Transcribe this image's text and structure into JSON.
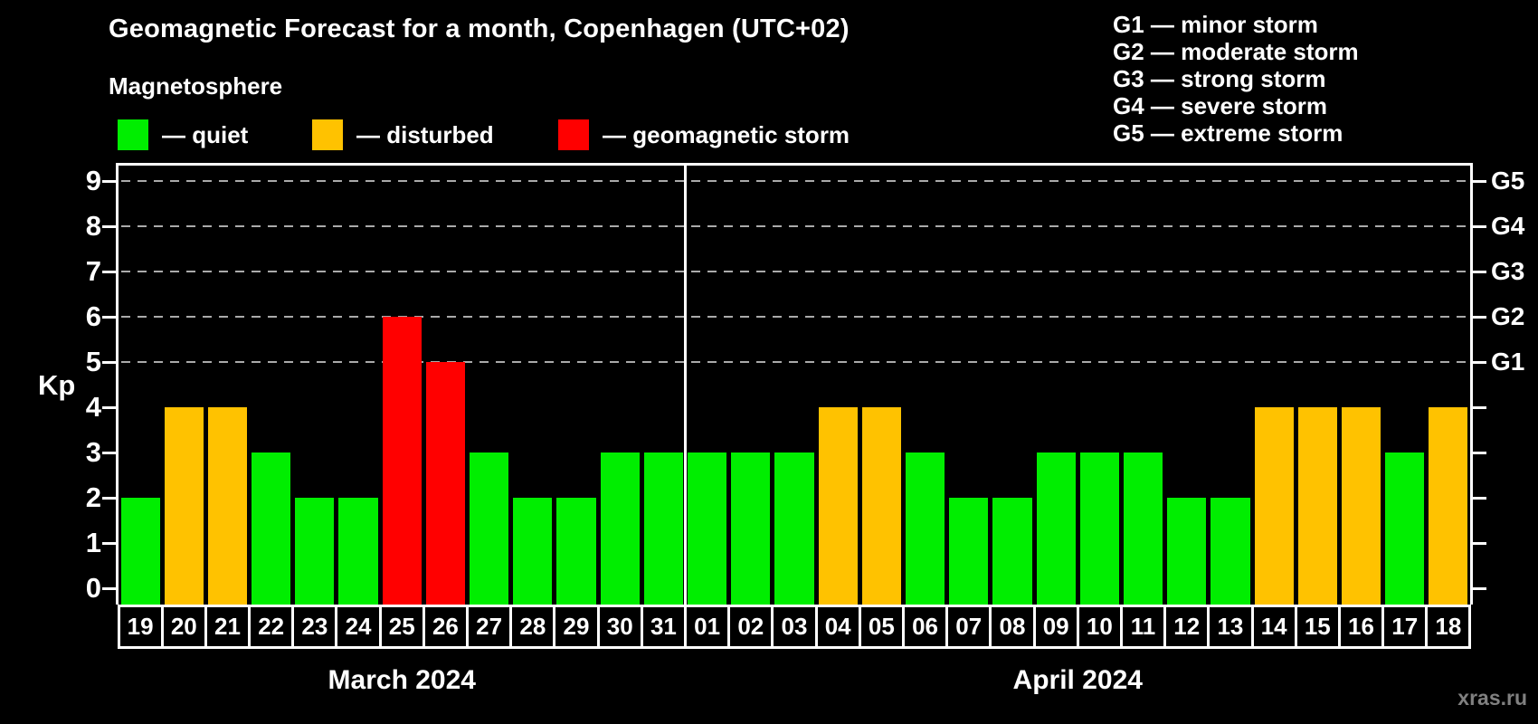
{
  "header": {
    "title": "Geomagnetic Forecast for a month, Copenhagen (UTC+02)",
    "subtitle": "Magnetosphere"
  },
  "legend": {
    "items": [
      {
        "label": "— quiet",
        "status": "quiet"
      },
      {
        "label": "— disturbed",
        "status": "disturbed"
      },
      {
        "label": "— geomagnetic storm",
        "status": "storm"
      }
    ]
  },
  "g_legend": {
    "items": [
      "G1 — minor storm",
      "G2 — moderate storm",
      "G3 — strong storm",
      "G4 — severe storm",
      "G5 — extreme storm"
    ]
  },
  "colors": {
    "quiet": "#00EE00",
    "disturbed": "#FFC200",
    "storm": "#FF0000",
    "background": "#000000",
    "axis": "#FFFFFF",
    "grid": "#AAAAAA",
    "text": "#FFFFFF",
    "watermark": "#808080"
  },
  "chart_data": {
    "type": "bar",
    "title": "Geomagnetic Forecast for a month, Copenhagen (UTC+02)",
    "ylabel": "Kp",
    "ylim": [
      0,
      9
    ],
    "y_ticks": [
      0,
      1,
      2,
      3,
      4,
      5,
      6,
      7,
      8,
      9
    ],
    "gridlines_at_kp": [
      5,
      6,
      7,
      8,
      9
    ],
    "grid_style": "dashed",
    "legend_position": "top",
    "right_axis": [
      {
        "label": "G1",
        "kp": 5
      },
      {
        "label": "G2",
        "kp": 6
      },
      {
        "label": "G3",
        "kp": 7
      },
      {
        "label": "G4",
        "kp": 8
      },
      {
        "label": "G5",
        "kp": 9
      }
    ],
    "categories": [
      "19",
      "20",
      "21",
      "22",
      "23",
      "24",
      "25",
      "26",
      "27",
      "28",
      "29",
      "30",
      "31",
      "01",
      "02",
      "03",
      "04",
      "05",
      "06",
      "07",
      "08",
      "09",
      "10",
      "11",
      "12",
      "13",
      "14",
      "15",
      "16",
      "17",
      "18"
    ],
    "values": [
      2,
      4,
      4,
      3,
      2,
      2,
      6,
      5,
      3,
      2,
      2,
      3,
      3,
      3,
      3,
      3,
      4,
      4,
      3,
      2,
      2,
      3,
      3,
      3,
      2,
      2,
      4,
      4,
      4,
      3,
      4
    ],
    "statuses": [
      "quiet",
      "disturbed",
      "disturbed",
      "quiet",
      "quiet",
      "quiet",
      "storm",
      "storm",
      "quiet",
      "quiet",
      "quiet",
      "quiet",
      "quiet",
      "quiet",
      "quiet",
      "quiet",
      "disturbed",
      "disturbed",
      "quiet",
      "quiet",
      "quiet",
      "quiet",
      "quiet",
      "quiet",
      "quiet",
      "quiet",
      "disturbed",
      "disturbed",
      "disturbed",
      "quiet",
      "disturbed"
    ],
    "months": [
      {
        "label": "March 2024",
        "days": 13
      },
      {
        "label": "April 2024",
        "days": 18
      }
    ]
  },
  "watermark": "xras.ru"
}
